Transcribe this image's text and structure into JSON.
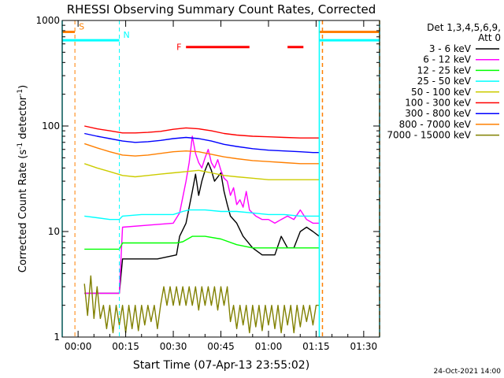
{
  "chart_data": {
    "type": "line",
    "title": "RHESSI Observing Summary Count Rates, Corrected",
    "xlabel": "Start Time (07-Apr-13 23:55:02)",
    "ylabel_main": "Corrected Count Rate (s",
    "ylabel_sup1": "-1",
    "ylabel_mid": " detector",
    "ylabel_sup2": "-1",
    "ylabel_end": ")",
    "y_scale": "log",
    "ylim": [
      1,
      1000
    ],
    "xlim_minutes": [
      -5,
      95
    ],
    "x_ticks": [
      {
        "t": 0,
        "label": "00:00"
      },
      {
        "t": 15,
        "label": "00:15"
      },
      {
        "t": 30,
        "label": "00:30"
      },
      {
        "t": 45,
        "label": "00:45"
      },
      {
        "t": 60,
        "label": "01:00"
      },
      {
        "t": 75,
        "label": "01:15"
      },
      {
        "t": 90,
        "label": "01:30"
      }
    ],
    "y_ticks": [
      {
        "v": 1,
        "label": "1"
      },
      {
        "v": 10,
        "label": "10"
      },
      {
        "v": 100,
        "label": "100"
      },
      {
        "v": 1000,
        "label": "1000"
      }
    ],
    "legend_header": [
      "Det 1,3,4,5,6,9,",
      "Att 0"
    ],
    "series": [
      {
        "name": "3 - 6 keV",
        "color": "#000000",
        "points": [
          [
            2,
            2.6
          ],
          [
            13,
            2.6
          ],
          [
            14,
            5.5
          ],
          [
            25,
            5.5
          ],
          [
            31,
            6
          ],
          [
            32,
            9
          ],
          [
            34,
            12
          ],
          [
            36,
            24
          ],
          [
            37,
            35
          ],
          [
            38,
            22
          ],
          [
            39,
            30
          ],
          [
            40,
            38
          ],
          [
            41,
            45
          ],
          [
            42,
            38
          ],
          [
            43,
            30
          ],
          [
            45,
            36
          ],
          [
            46,
            24
          ],
          [
            47,
            18
          ],
          [
            48,
            14
          ],
          [
            50,
            12
          ],
          [
            52,
            9
          ],
          [
            55,
            7
          ],
          [
            58,
            6
          ],
          [
            62,
            6
          ],
          [
            64,
            9
          ],
          [
            66,
            7
          ],
          [
            68,
            7
          ],
          [
            70,
            10
          ],
          [
            72,
            11
          ],
          [
            74,
            10
          ],
          [
            76,
            9
          ]
        ]
      },
      {
        "name": "6 - 12 keV",
        "color": "#ff00ff",
        "points": [
          [
            2,
            2.6
          ],
          [
            13,
            2.6
          ],
          [
            14,
            11
          ],
          [
            22,
            11.5
          ],
          [
            30,
            12
          ],
          [
            32,
            15
          ],
          [
            34,
            30
          ],
          [
            35,
            45
          ],
          [
            36,
            80
          ],
          [
            37,
            55
          ],
          [
            38,
            45
          ],
          [
            39,
            40
          ],
          [
            40,
            50
          ],
          [
            41,
            60
          ],
          [
            42,
            45
          ],
          [
            43,
            40
          ],
          [
            44,
            48
          ],
          [
            45,
            38
          ],
          [
            46,
            32
          ],
          [
            47,
            30
          ],
          [
            48,
            22
          ],
          [
            49,
            26
          ],
          [
            50,
            18
          ],
          [
            51,
            20
          ],
          [
            52,
            17
          ],
          [
            53,
            24
          ],
          [
            54,
            16
          ],
          [
            56,
            14
          ],
          [
            58,
            13
          ],
          [
            60,
            13
          ],
          [
            62,
            12
          ],
          [
            64,
            13
          ],
          [
            66,
            14
          ],
          [
            68,
            13
          ],
          [
            70,
            16
          ],
          [
            72,
            13
          ],
          [
            74,
            12
          ],
          [
            76,
            12
          ]
        ]
      },
      {
        "name": "12 - 25 keV",
        "color": "#00ff00",
        "points": [
          [
            2,
            6.8
          ],
          [
            13,
            6.8
          ],
          [
            14,
            7.8
          ],
          [
            25,
            7.8
          ],
          [
            31,
            7.8
          ],
          [
            33,
            8
          ],
          [
            36,
            9
          ],
          [
            40,
            9
          ],
          [
            45,
            8.5
          ],
          [
            50,
            7.5
          ],
          [
            55,
            7
          ],
          [
            60,
            7
          ],
          [
            65,
            7
          ],
          [
            70,
            7
          ],
          [
            74,
            7
          ],
          [
            76,
            7
          ]
        ]
      },
      {
        "name": "25 - 50 keV",
        "color": "#00ffff",
        "points": [
          [
            2,
            14
          ],
          [
            6,
            13.5
          ],
          [
            10,
            13
          ],
          [
            13,
            13
          ],
          [
            14,
            14
          ],
          [
            20,
            14.5
          ],
          [
            25,
            14.5
          ],
          [
            30,
            14.5
          ],
          [
            33,
            15.5
          ],
          [
            35,
            16
          ],
          [
            40,
            16
          ],
          [
            45,
            15.5
          ],
          [
            50,
            15.5
          ],
          [
            55,
            15
          ],
          [
            60,
            14.5
          ],
          [
            65,
            14.5
          ],
          [
            70,
            14
          ],
          [
            74,
            14
          ],
          [
            76,
            14
          ]
        ]
      },
      {
        "name": "50 - 100 keV",
        "color": "#cccc00",
        "points": [
          [
            2,
            44
          ],
          [
            6,
            40
          ],
          [
            10,
            37
          ],
          [
            14,
            34
          ],
          [
            18,
            33
          ],
          [
            22,
            34
          ],
          [
            26,
            35
          ],
          [
            30,
            36
          ],
          [
            34,
            37
          ],
          [
            38,
            38
          ],
          [
            42,
            36
          ],
          [
            46,
            34
          ],
          [
            50,
            33
          ],
          [
            55,
            32
          ],
          [
            60,
            31
          ],
          [
            65,
            31
          ],
          [
            70,
            31
          ],
          [
            74,
            31
          ],
          [
            76,
            31
          ]
        ]
      },
      {
        "name": "100 - 300 keV",
        "color": "#ff0000",
        "points": [
          [
            2,
            100
          ],
          [
            6,
            94
          ],
          [
            10,
            90
          ],
          [
            14,
            86
          ],
          [
            18,
            86
          ],
          [
            22,
            87
          ],
          [
            26,
            89
          ],
          [
            30,
            93
          ],
          [
            34,
            96
          ],
          [
            38,
            94
          ],
          [
            42,
            90
          ],
          [
            46,
            85
          ],
          [
            50,
            82
          ],
          [
            55,
            80
          ],
          [
            60,
            79
          ],
          [
            65,
            78
          ],
          [
            70,
            77
          ],
          [
            74,
            77
          ],
          [
            76,
            77
          ]
        ]
      },
      {
        "name": "300 - 800 keV",
        "color": "#0000ff",
        "points": [
          [
            2,
            85
          ],
          [
            6,
            80
          ],
          [
            10,
            76
          ],
          [
            14,
            72
          ],
          [
            18,
            70
          ],
          [
            22,
            71
          ],
          [
            26,
            73
          ],
          [
            30,
            76
          ],
          [
            34,
            78
          ],
          [
            38,
            76
          ],
          [
            42,
            72
          ],
          [
            46,
            67
          ],
          [
            50,
            64
          ],
          [
            55,
            61
          ],
          [
            60,
            59
          ],
          [
            65,
            58
          ],
          [
            70,
            57
          ],
          [
            74,
            56
          ],
          [
            76,
            56
          ]
        ]
      },
      {
        "name": "800 - 7000 keV",
        "color": "#ff7f00",
        "points": [
          [
            2,
            68
          ],
          [
            6,
            62
          ],
          [
            10,
            57
          ],
          [
            14,
            53
          ],
          [
            18,
            52
          ],
          [
            22,
            53
          ],
          [
            26,
            55
          ],
          [
            30,
            57
          ],
          [
            34,
            58
          ],
          [
            38,
            57
          ],
          [
            42,
            54
          ],
          [
            46,
            51
          ],
          [
            50,
            49
          ],
          [
            55,
            47
          ],
          [
            60,
            46
          ],
          [
            65,
            45
          ],
          [
            70,
            44
          ],
          [
            74,
            44
          ],
          [
            76,
            44
          ]
        ]
      },
      {
        "name": "7000 - 15000 keV",
        "color": "#808000",
        "points": [
          [
            2,
            3.2
          ],
          [
            3,
            1.6
          ],
          [
            4,
            3.8
          ],
          [
            5,
            1.5
          ],
          [
            6,
            3.0
          ],
          [
            7,
            1.5
          ],
          [
            8,
            2.0
          ],
          [
            9,
            1.2
          ],
          [
            10,
            2.0
          ],
          [
            11,
            1.1
          ],
          [
            12,
            2.0
          ],
          [
            13,
            1.3
          ],
          [
            14,
            2.0
          ],
          [
            15,
            1.1
          ],
          [
            16,
            2.0
          ],
          [
            17,
            1.2
          ],
          [
            18,
            2.0
          ],
          [
            19,
            1.15
          ],
          [
            20,
            2.0
          ],
          [
            21,
            1.3
          ],
          [
            22,
            2.0
          ],
          [
            23,
            1.4
          ],
          [
            24,
            2.0
          ],
          [
            25,
            1.2
          ],
          [
            26,
            2.0
          ],
          [
            27,
            3.0
          ],
          [
            28,
            2.0
          ],
          [
            29,
            3.0
          ],
          [
            30,
            2.0
          ],
          [
            31,
            3.0
          ],
          [
            32,
            2.0
          ],
          [
            33,
            3.0
          ],
          [
            34,
            2.0
          ],
          [
            35,
            3.0
          ],
          [
            36,
            2.0
          ],
          [
            37,
            3.0
          ],
          [
            38,
            1.8
          ],
          [
            39,
            3.0
          ],
          [
            40,
            2.0
          ],
          [
            41,
            3.0
          ],
          [
            42,
            2.0
          ],
          [
            43,
            3.0
          ],
          [
            44,
            1.8
          ],
          [
            45,
            3.0
          ],
          [
            46,
            2.0
          ],
          [
            47,
            3.0
          ],
          [
            48,
            1.4
          ],
          [
            49,
            2.0
          ],
          [
            50,
            1.2
          ],
          [
            51,
            2.0
          ],
          [
            52,
            1.3
          ],
          [
            53,
            2.0
          ],
          [
            54,
            1.1
          ],
          [
            55,
            2.0
          ],
          [
            56,
            1.25
          ],
          [
            57,
            2.0
          ],
          [
            58,
            1.15
          ],
          [
            59,
            2.0
          ],
          [
            60,
            1.3
          ],
          [
            61,
            2.0
          ],
          [
            62,
            1.2
          ],
          [
            63,
            2.0
          ],
          [
            64,
            1.1
          ],
          [
            65,
            2.0
          ],
          [
            66,
            1.3
          ],
          [
            67,
            2.0
          ],
          [
            68,
            1.1
          ],
          [
            69,
            2.0
          ],
          [
            70,
            1.25
          ],
          [
            71,
            2.0
          ],
          [
            72,
            1.4
          ],
          [
            73,
            2.0
          ],
          [
            74,
            1.3
          ],
          [
            75,
            2.0
          ],
          [
            76,
            2.0
          ]
        ]
      }
    ],
    "markers": {
      "S": {
        "label": "S",
        "color": "#ff7f00",
        "line_t": -1,
        "segments": [
          [
            -5,
            -1,
            780
          ],
          [
            76,
            95,
            780
          ]
        ]
      },
      "N": {
        "label": "N",
        "color": "#00ffff",
        "line_t": 13,
        "segments": [
          [
            -5,
            13,
            650
          ],
          [
            76,
            95,
            650
          ]
        ]
      },
      "F": {
        "label": "F",
        "color": "#ff0000",
        "segments": [
          [
            34,
            54,
            560
          ],
          [
            66,
            71,
            560
          ]
        ]
      },
      "boundaries": [
        {
          "t": -5,
          "color": "#00ffff"
        },
        {
          "t": 76,
          "color": "#00ffff"
        },
        {
          "t": 77,
          "color": "#ff7f00"
        },
        {
          "t": 95,
          "color": "#00ffff"
        },
        {
          "t": 95,
          "color": "#ff7f00"
        }
      ]
    },
    "timestamp": "24-Oct-2021 14:00"
  }
}
